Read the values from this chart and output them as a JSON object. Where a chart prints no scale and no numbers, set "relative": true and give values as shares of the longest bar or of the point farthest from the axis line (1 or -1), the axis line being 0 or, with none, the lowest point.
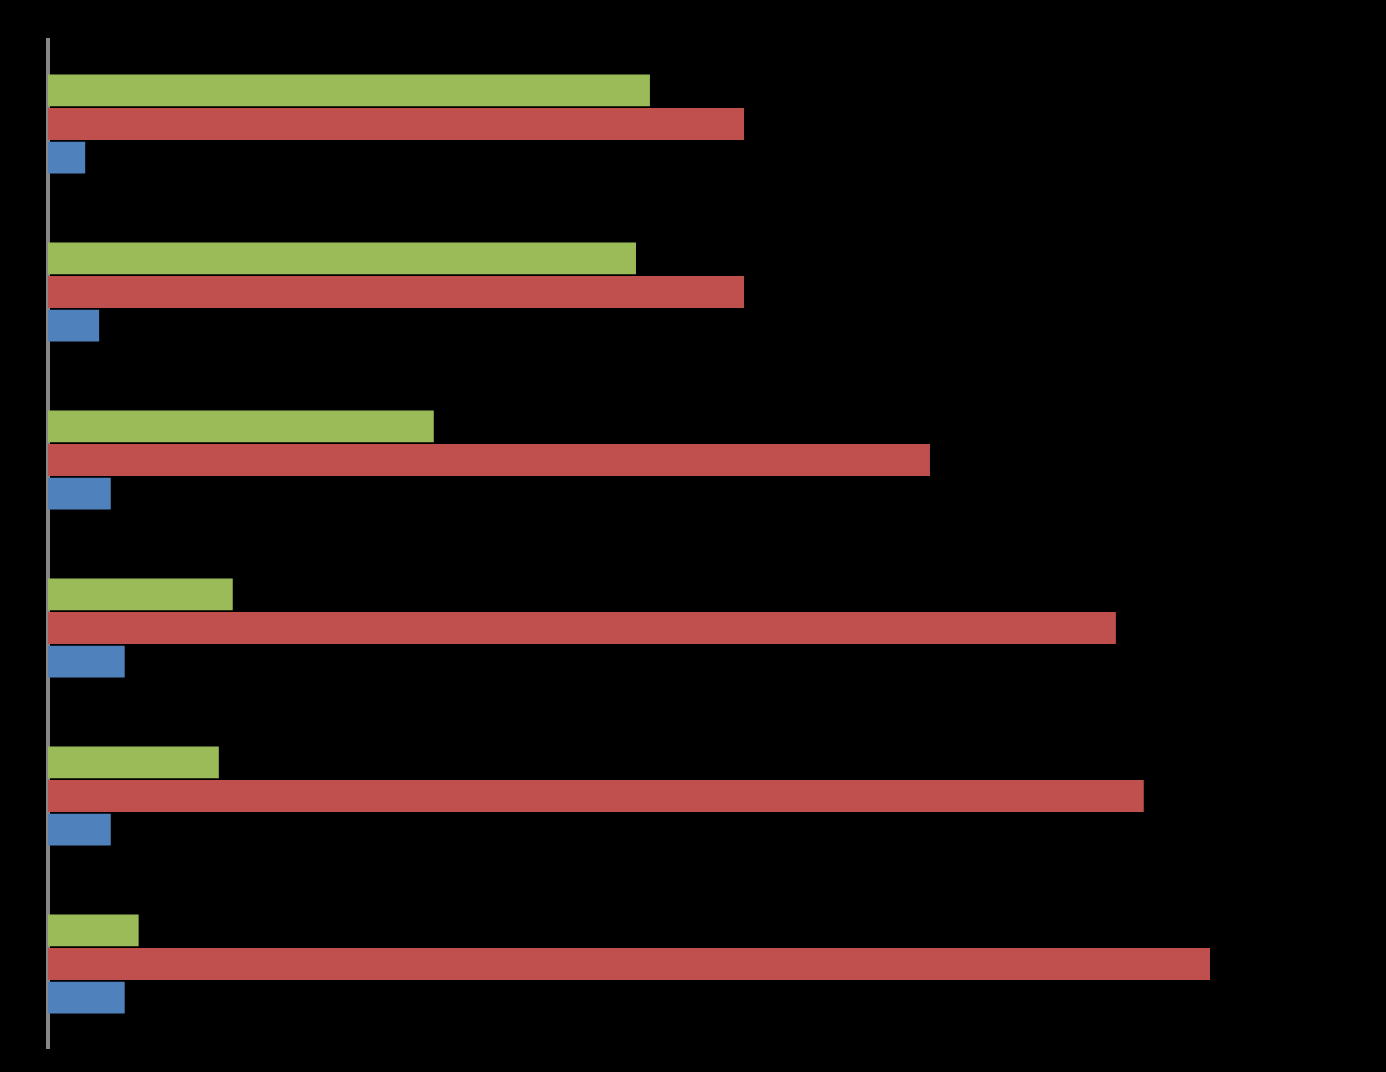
{
  "chart_data": {
    "type": "bar",
    "orientation": "horizontal",
    "relative": true,
    "categories": [
      null,
      null,
      null,
      null,
      null,
      null
    ],
    "series": [
      {
        "color": "#9bbb59",
        "values": [
          0.518,
          0.506,
          0.332,
          0.159,
          0.147,
          0.078
        ]
      },
      {
        "color": "#c0504d",
        "values": [
          0.599,
          0.599,
          0.759,
          0.919,
          0.943,
          1
        ]
      },
      {
        "color": "#4f81bd",
        "values": [
          0.032,
          0.044,
          0.054,
          0.066,
          0.054,
          0.066
        ]
      }
    ],
    "legend": false
  }
}
